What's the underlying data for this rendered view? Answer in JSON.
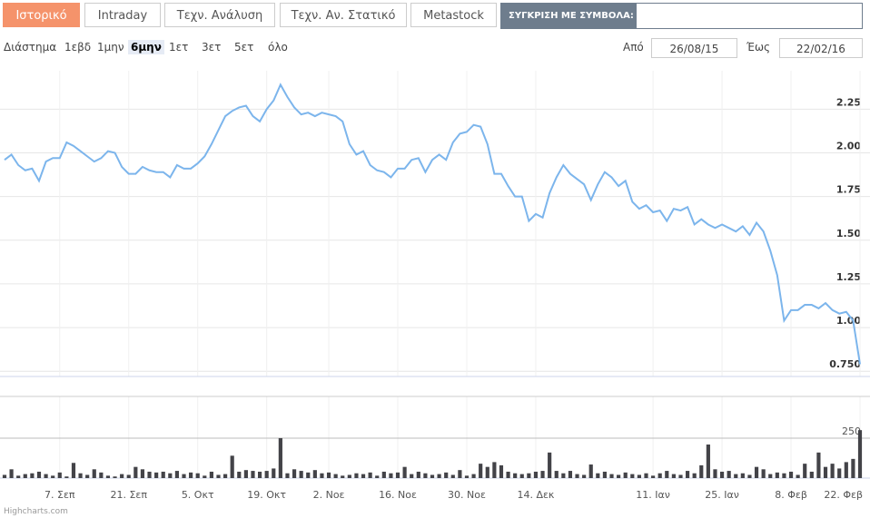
{
  "tabs": [
    "Ιστορικό",
    "Intraday",
    "Τεχν. Ανάλυση",
    "Τεχν. Αν. Στατικό",
    "Metastock"
  ],
  "active_tab": 0,
  "compare_label": "ΣΥΓΚΡΙΣΗ ΜΕ ΣΥΜΒΟΛΑ:",
  "range_label": "Διάστημα",
  "range_buttons": [
    "1εβδ",
    "1μην",
    "6μην",
    "1ετ",
    "3ετ",
    "5ετ",
    "όλο"
  ],
  "range_selected": 2,
  "from_label": "Από",
  "from_date": "26/08/15",
  "to_label": "Έως",
  "to_date": "22/02/16",
  "credits": "Highcharts.com",
  "chart_data": {
    "type": "stock",
    "categories": [
      null,
      null,
      null,
      null,
      null,
      null,
      null,
      null,
      "7. Σεπ",
      null,
      null,
      null,
      null,
      null,
      null,
      null,
      null,
      null,
      "21. Σεπ",
      null,
      null,
      null,
      null,
      null,
      null,
      null,
      null,
      null,
      "5. Οκτ",
      null,
      null,
      null,
      null,
      null,
      null,
      null,
      null,
      null,
      "19. Οκτ",
      null,
      null,
      null,
      null,
      null,
      null,
      null,
      null,
      "2. Νοε",
      null,
      null,
      null,
      null,
      null,
      null,
      null,
      null,
      null,
      "16. Νοε",
      null,
      null,
      null,
      null,
      null,
      null,
      null,
      null,
      null,
      "30. Νοε",
      null,
      null,
      null,
      null,
      null,
      null,
      null,
      null,
      null,
      "14. Δεκ",
      null,
      null,
      null,
      null,
      null,
      null,
      null,
      null,
      null,
      null,
      null,
      null,
      null,
      null,
      null,
      null,
      "11. Ιαν",
      null,
      null,
      null,
      null,
      null,
      null,
      null,
      null,
      null,
      "25. Ιαν",
      null,
      null,
      null,
      null,
      null,
      null,
      null,
      null,
      null,
      "8. Φεβ",
      null,
      null,
      null,
      null,
      null,
      null,
      null,
      null,
      null,
      "22. Φεβ"
    ],
    "series": [
      {
        "color": "#7cb5ec",
        "values": [
          1.96,
          1.99,
          1.93,
          1.9,
          1.91,
          1.84,
          1.95,
          1.97,
          1.97,
          2.06,
          2.04,
          2.01,
          1.98,
          1.95,
          1.97,
          2.01,
          2.0,
          1.92,
          1.88,
          1.88,
          1.92,
          1.9,
          1.89,
          1.89,
          1.86,
          1.93,
          1.91,
          1.91,
          1.94,
          1.98,
          2.05,
          2.13,
          2.21,
          2.24,
          2.26,
          2.27,
          2.21,
          2.18,
          2.25,
          2.3,
          2.39,
          2.32,
          2.26,
          2.22,
          2.23,
          2.21,
          2.23,
          2.22,
          2.21,
          2.18,
          2.05,
          1.99,
          2.01,
          1.93,
          1.9,
          1.89,
          1.86,
          1.91,
          1.91,
          1.96,
          1.97,
          1.89,
          1.96,
          1.99,
          1.96,
          2.06,
          2.11,
          2.12,
          2.16,
          2.15,
          2.05,
          1.88,
          1.88,
          1.81,
          1.75,
          1.75,
          1.61,
          1.65,
          1.63,
          1.77,
          1.86,
          1.93,
          1.88,
          1.85,
          1.82,
          1.73,
          1.82,
          1.89,
          1.86,
          1.81,
          1.84,
          1.72,
          1.68,
          1.7,
          1.66,
          1.67,
          1.61,
          1.68,
          1.67,
          1.69,
          1.59,
          1.62,
          1.59,
          1.57,
          1.59,
          1.57,
          1.55,
          1.58,
          1.53,
          1.6,
          1.55,
          1.44,
          1.3,
          1.04,
          1.1,
          1.1,
          1.13,
          1.13,
          1.11,
          1.14,
          1.1,
          1.08,
          1.09,
          1.04,
          0.79
        ]
      },
      {
        "type": "column",
        "axis": "y2",
        "color": "#434348",
        "values": [
          20,
          55,
          15,
          25,
          30,
          40,
          25,
          15,
          35,
          10,
          95,
          30,
          20,
          55,
          35,
          15,
          10,
          25,
          20,
          70,
          55,
          40,
          35,
          40,
          30,
          45,
          25,
          35,
          30,
          15,
          40,
          20,
          25,
          140,
          40,
          50,
          45,
          40,
          45,
          60,
          250,
          30,
          55,
          45,
          35,
          50,
          30,
          35,
          25,
          15,
          20,
          30,
          25,
          35,
          15,
          40,
          30,
          35,
          70,
          25,
          40,
          30,
          20,
          25,
          35,
          20,
          50,
          15,
          25,
          90,
          70,
          100,
          80,
          40,
          30,
          25,
          30,
          40,
          45,
          160,
          45,
          30,
          45,
          25,
          20,
          85,
          30,
          40,
          25,
          20,
          35,
          25,
          20,
          30,
          15,
          30,
          45,
          25,
          20,
          45,
          30,
          80,
          210,
          55,
          40,
          45,
          25,
          30,
          20,
          70,
          55,
          25,
          35,
          30,
          40,
          20,
          90,
          40,
          160,
          70,
          90,
          60,
          100,
          120,
          300
        ]
      }
    ],
    "ylim": [
      0.72,
      2.47
    ],
    "yticks": [
      {
        "value": 0.75,
        "label": "0.750"
      },
      {
        "value": 1,
        "label": "1.00"
      },
      1.25,
      {
        "value": 1.5,
        "label": "1.50"
      },
      1.75,
      {
        "value": 2,
        "label": "2.00"
      },
      2.25
    ],
    "y2lim": [
      0,
      511
    ],
    "y2ticks": [
      250
    ],
    "grid": true
  }
}
